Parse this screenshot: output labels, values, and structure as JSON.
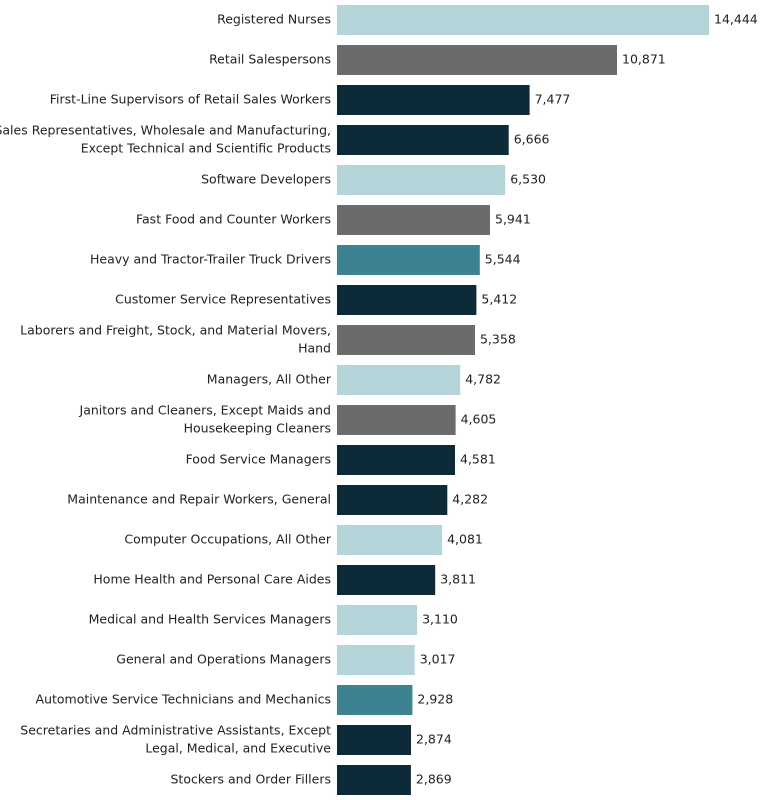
{
  "chart_data": {
    "type": "bar",
    "orientation": "horizontal",
    "title": "",
    "xlabel": "",
    "ylabel": "",
    "xlim": [
      0,
      14444
    ],
    "grid": false,
    "legend": "none",
    "categories": [
      [
        "Registered Nurses"
      ],
      [
        "Retail Salespersons"
      ],
      [
        "First-Line Supervisors of Retail Sales Workers"
      ],
      [
        "Sales Representatives, Wholesale and Manufacturing,",
        "Except Technical and Scientific Products"
      ],
      [
        "Software Developers"
      ],
      [
        "Fast Food and Counter Workers"
      ],
      [
        "Heavy and Tractor-Trailer Truck Drivers"
      ],
      [
        "Customer Service Representatives"
      ],
      [
        "Laborers and Freight, Stock, and Material Movers,",
        "Hand"
      ],
      [
        "Managers, All Other"
      ],
      [
        "Janitors and Cleaners, Except Maids and",
        "Housekeeping Cleaners"
      ],
      [
        "Food Service Managers"
      ],
      [
        "Maintenance and Repair Workers, General"
      ],
      [
        "Computer Occupations, All Other"
      ],
      [
        "Home Health and Personal Care Aides"
      ],
      [
        "Medical and Health Services Managers"
      ],
      [
        "General and Operations Managers"
      ],
      [
        "Automotive Service Technicians and Mechanics"
      ],
      [
        "Secretaries and Administrative Assistants, Except",
        "Legal, Medical, and Executive"
      ],
      [
        "Stockers and Order Fillers"
      ]
    ],
    "values": [
      14444,
      10871,
      7477,
      6666,
      6530,
      5941,
      5544,
      5412,
      5358,
      4782,
      4605,
      4581,
      4282,
      4081,
      3811,
      3110,
      3017,
      2928,
      2874,
      2869
    ],
    "value_labels": [
      "14,444",
      "10,871",
      "7,477",
      "6,666",
      "6,530",
      "5,941",
      "5,544",
      "5,412",
      "5,358",
      "4,782",
      "4,605",
      "4,581",
      "4,282",
      "4,081",
      "3,811",
      "3,110",
      "3,017",
      "2,928",
      "2,874",
      "2,869"
    ],
    "color_groups": [
      "light",
      "gray",
      "dark",
      "dark",
      "light",
      "gray",
      "teal",
      "dark",
      "gray",
      "light",
      "gray",
      "dark",
      "dark",
      "light",
      "dark",
      "light",
      "light",
      "teal",
      "dark",
      "dark"
    ],
    "colors": {
      "light": "#b4d4da",
      "gray": "#6b6b6b",
      "dark": "#0d2a38",
      "teal": "#3c8290"
    }
  }
}
